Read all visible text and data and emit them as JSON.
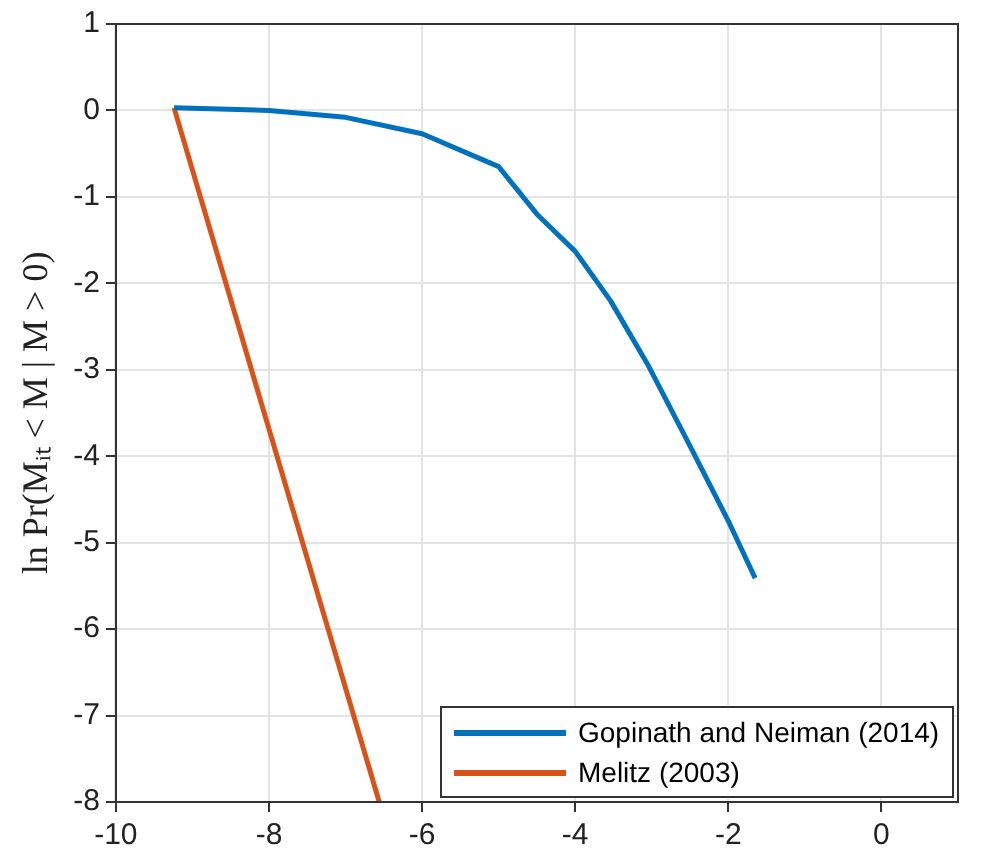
{
  "chart_data": {
    "type": "line",
    "ylabel": "ln Pr(Mᵢₜ < M | M > 0)",
    "xlim": [
      -10,
      1
    ],
    "xticks": [
      -10,
      -8,
      -6,
      -4,
      -2,
      0
    ],
    "ylim": [
      -8,
      1
    ],
    "yticks": [
      1,
      0,
      -1,
      -2,
      -3,
      -4,
      -5,
      -6,
      -7,
      -8
    ],
    "grid": true,
    "legend": "bottom right",
    "marker": "none",
    "line_style": "solid",
    "series": [
      {
        "name": "Gopinath and Neiman (2014)",
        "color": "#0072bd",
        "x": [
          -9.24,
          -8,
          -7,
          -6,
          -5,
          -4.5,
          -4,
          -3.54,
          -3.04,
          -2.53,
          -2,
          -1.65
        ],
        "values": [
          0.03,
          0,
          -0.08,
          -0.27,
          -0.65,
          -1.2,
          -1.63,
          -2.2,
          -2.96,
          -3.83,
          -4.75,
          -5.41
        ]
      },
      {
        "name": "Melitz (2003)",
        "color": "#d95319",
        "x": [
          -9.24,
          -6.56
        ],
        "values": [
          0.03,
          -8
        ]
      }
    ]
  }
}
